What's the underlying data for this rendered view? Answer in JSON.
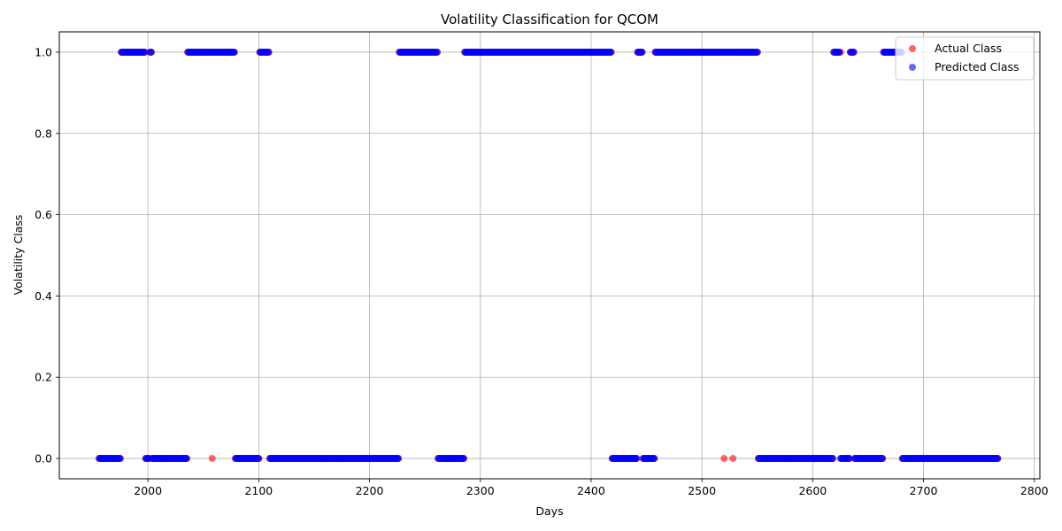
{
  "chart_data": {
    "type": "scatter",
    "title": "Volatility Classification for QCOM",
    "xlabel": "Days",
    "ylabel": "Volatility Class",
    "xlim": [
      1920,
      2805
    ],
    "ylim": [
      -0.05,
      1.05
    ],
    "xticks": [
      2000,
      2100,
      2200,
      2300,
      2400,
      2500,
      2600,
      2700,
      2800
    ],
    "yticks": [
      0.0,
      0.2,
      0.4,
      0.6,
      0.8,
      1.0
    ],
    "xtick_labels": [
      "2000",
      "2100",
      "2200",
      "2300",
      "2400",
      "2500",
      "2600",
      "2700",
      "2800"
    ],
    "ytick_labels": [
      "0.0",
      "0.2",
      "0.4",
      "0.6",
      "0.8",
      "1.0"
    ],
    "grid": true,
    "legend_position": "top-right",
    "x_start": 1956,
    "x_end": 2767,
    "predicted_class_one_ranges": [
      [
        1976,
        1997
      ],
      [
        2002,
        2003
      ],
      [
        2036,
        2078
      ],
      [
        2101,
        2109
      ],
      [
        2227,
        2261
      ],
      [
        2286,
        2418
      ],
      [
        2442,
        2446
      ],
      [
        2458,
        2550
      ],
      [
        2619,
        2624
      ],
      [
        2634,
        2637
      ],
      [
        2664,
        2680
      ]
    ],
    "actual_differs_days": [
      2058,
      2520,
      2528,
      2625
    ],
    "series": [
      {
        "name": "Actual Class",
        "color": "#ff0000",
        "alpha": 0.6
      },
      {
        "name": "Predicted Class",
        "color": "#0000ff",
        "alpha": 0.6
      }
    ]
  }
}
